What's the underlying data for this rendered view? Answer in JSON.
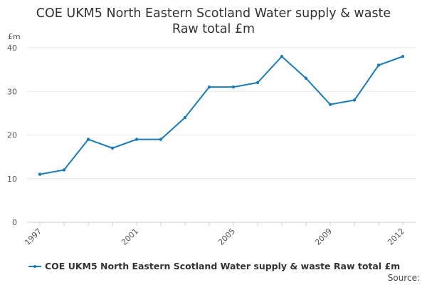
{
  "chart_data": {
    "type": "line",
    "title_lines": [
      "COE UKM5 North Eastern Scotland Water supply & waste",
      "Raw total £m"
    ],
    "ylabel": "£m",
    "xlabel": "",
    "ylim": [
      0,
      40
    ],
    "yticks": [
      0,
      10,
      20,
      30,
      40
    ],
    "xticks": [
      "1997",
      "2001",
      "2005",
      "2009",
      "2012"
    ],
    "x": [
      1997,
      1998,
      1999,
      2000,
      2001,
      2002,
      2003,
      2004,
      2005,
      2006,
      2007,
      2008,
      2009,
      2010,
      2011,
      2012
    ],
    "series": [
      {
        "name": "COE UKM5 North Eastern Scotland Water supply & waste Raw total £m",
        "values": [
          11,
          12,
          19,
          17,
          19,
          19,
          24,
          31,
          31,
          32,
          38,
          33,
          27,
          28,
          36,
          38
        ],
        "color": "#1c7bb6"
      }
    ],
    "grid": true,
    "legend_position": "bottom"
  },
  "source_label": "Source:"
}
